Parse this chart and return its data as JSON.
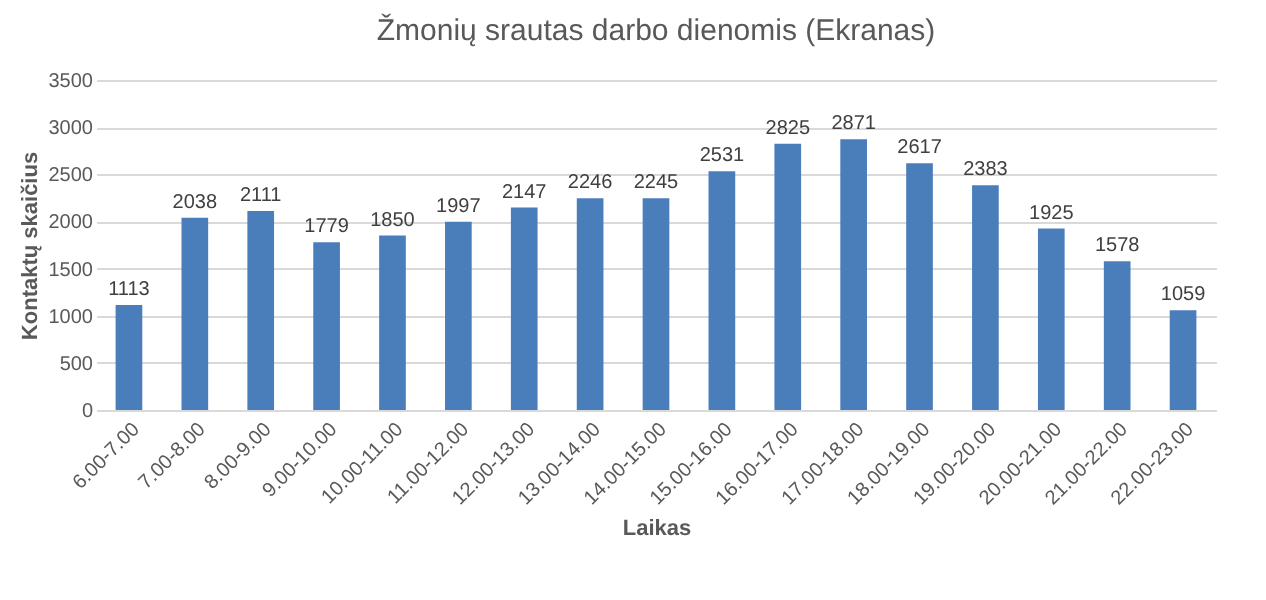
{
  "chart_data": {
    "type": "bar",
    "title": "Žmonių srautas darbo dienomis (Ekranas)",
    "xlabel": "Laikas",
    "ylabel": "Kontaktų skaičius",
    "categories": [
      "6.00-7.00",
      "7.00-8.00",
      "8.00-9.00",
      "9.00-10.00",
      "10.00-11.00",
      "11.00-12.00",
      "12.00-13.00",
      "13.00-14.00",
      "14.00-15.00",
      "15.00-16.00",
      "16.00-17.00",
      "17.00-18.00",
      "18.00-19.00",
      "19.00-20.00",
      "20.00-21.00",
      "21.00-22.00",
      "22.00-23.00"
    ],
    "values": [
      1113,
      2038,
      2111,
      1779,
      1850,
      1997,
      2147,
      2246,
      2245,
      2531,
      2825,
      2871,
      2617,
      2383,
      1925,
      1578,
      1059
    ],
    "color": "#4a7ebb",
    "ylim": [
      0,
      3500
    ],
    "yticks": [
      0,
      500,
      1000,
      1500,
      2000,
      2500,
      3000,
      3500
    ],
    "grid": "y",
    "data_labels": true
  }
}
